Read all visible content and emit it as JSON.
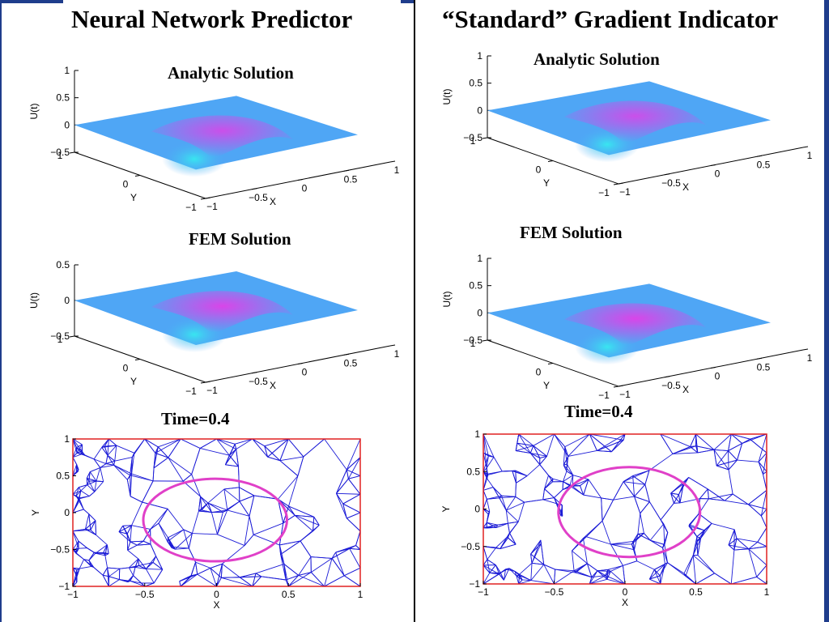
{
  "left": {
    "title": "Neural Network Predictor",
    "analytic_label": "Analytic Solution",
    "fem_label": "FEM Solution",
    "time_label": "Time=0.4"
  },
  "right": {
    "title": "“Standard” Gradient Indicator",
    "analytic_label": "Analytic Solution",
    "fem_label": "FEM Solution",
    "time_label": "Time=0.4"
  },
  "surface_axes": {
    "z_label": "U(t)",
    "x_label": "X",
    "y_label": "Y",
    "z_ticks_full": [
      "1",
      "0.5",
      "0",
      "−0.5"
    ],
    "z_ticks_short": [
      "0.5",
      "0",
      "−0.5"
    ],
    "x_ticks": [
      "−1",
      "−0.5",
      "0",
      "0.5",
      "1"
    ],
    "y_ticks": [
      "1",
      "0",
      "−1"
    ]
  },
  "mesh_axes": {
    "x_label": "X",
    "y_label": "Y",
    "x_ticks": [
      "−1",
      "−0.5",
      "0",
      "0.5",
      "1"
    ],
    "y_ticks": [
      "1",
      "0.5",
      "0",
      "−0.5",
      "−1"
    ]
  },
  "colors": {
    "surface_base": "#4fa6f5",
    "surface_peak": "#e040e8",
    "surface_trough": "#38e6f0",
    "mesh_lines": "#1a1ad6",
    "mesh_border": "#e02020",
    "circle": "#e040c8",
    "accent_bar": "#1f3d8c"
  }
}
